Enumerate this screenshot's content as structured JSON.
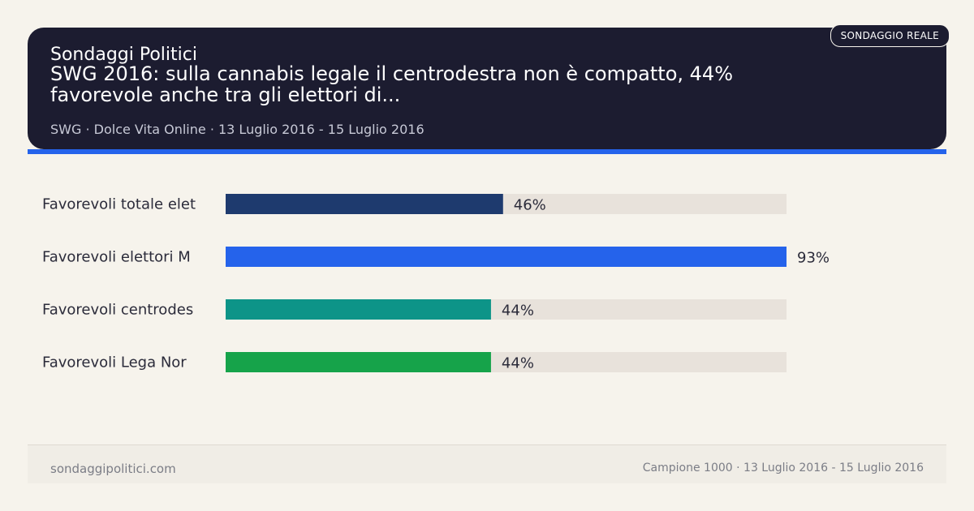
{
  "header": {
    "badge": "SONDAGGIO REALE",
    "brand": "Sondaggi Politici",
    "headline": "SWG 2016: sulla cannabis legale il centrodestra non è compatto, 44% favorevole anche tra gli elettori di...",
    "meta": "SWG · Dolce Vita Online · 13 Luglio 2016 - 15 Luglio 2016"
  },
  "chart_data": {
    "type": "bar",
    "orientation": "horizontal",
    "categories": [
      "Favorevoli totale elet",
      "Favorevoli elettori M",
      "Favorevoli centrodes",
      "Favorevoli Lega Nor"
    ],
    "values": [
      46,
      93,
      44,
      44
    ],
    "value_labels": [
      "46%",
      "93%",
      "44%",
      "44%"
    ],
    "xlim": [
      0,
      93
    ],
    "bar_colors": [
      "#1e3a6e",
      "#2563eb",
      "#0d9488",
      "#16a34a"
    ],
    "track_color": "#e8e2db",
    "grid": false
  },
  "footer": {
    "site": "sondaggipolitici.com",
    "info": "Campione 1000 · 13 Luglio 2016 - 15 Luglio 2016"
  }
}
